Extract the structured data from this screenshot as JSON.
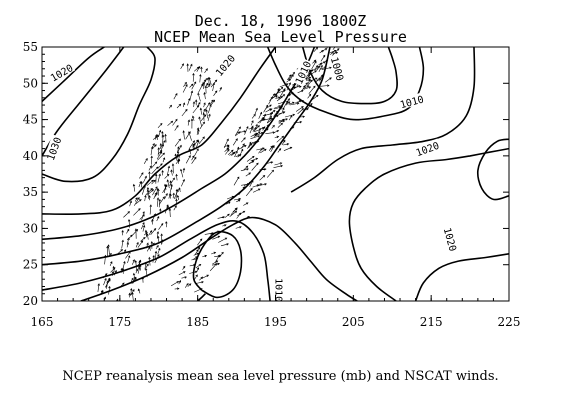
{
  "title": {
    "line1": "Dec. 18, 1996  1800Z",
    "line2": "NCEP Mean Sea Level Pressure"
  },
  "caption": "NCEP reanalysis mean sea level pressure (mb) and NSCAT winds.",
  "chart_data": {
    "type": "contour",
    "xlim": [
      165,
      225
    ],
    "ylim": [
      20,
      55
    ],
    "x_ticks": [
      165,
      175,
      185,
      195,
      205,
      215,
      225
    ],
    "y_ticks": [
      20,
      25,
      30,
      35,
      40,
      45,
      50,
      55
    ],
    "grid": false,
    "contour_labels": [
      {
        "text": "1020",
        "x": 167.5,
        "y": 51.5,
        "rot": -30
      },
      {
        "text": "1030",
        "x": 166.5,
        "y": 41.0,
        "rot": -70
      },
      {
        "text": "1020",
        "x": 188.5,
        "y": 52.5,
        "rot": -50
      },
      {
        "text": "1010",
        "x": 198.5,
        "y": 51.5,
        "rot": -65
      },
      {
        "text": "1000",
        "x": 203.0,
        "y": 52.0,
        "rot": 75
      },
      {
        "text": "1010",
        "x": 212.5,
        "y": 47.5,
        "rot": -15
      },
      {
        "text": "1020",
        "x": 214.5,
        "y": 41.0,
        "rot": -20
      },
      {
        "text": "1020",
        "x": 217.5,
        "y": 28.5,
        "rot": 75
      },
      {
        "text": "1010",
        "x": 195.5,
        "y": 21.5,
        "rot": 90
      }
    ],
    "contours": [
      [
        [
          165,
          47.5
        ],
        [
          168,
          50.5
        ],
        [
          171,
          53.5
        ],
        [
          173,
          55
        ]
      ],
      [
        [
          165,
          40
        ],
        [
          167,
          43.5
        ],
        [
          170,
          47.5
        ],
        [
          173,
          51.5
        ],
        [
          175.5,
          55
        ]
      ],
      [
        [
          165,
          37.5
        ],
        [
          168,
          36.5
        ],
        [
          171.5,
          37
        ],
        [
          174,
          39.5
        ],
        [
          176,
          43
        ],
        [
          177.5,
          47
        ],
        [
          179,
          50.5
        ],
        [
          179.5,
          53.5
        ],
        [
          178.5,
          55
        ]
      ],
      [
        [
          165,
          32
        ],
        [
          170,
          32
        ],
        [
          174,
          32.5
        ],
        [
          177,
          34.5
        ],
        [
          179.5,
          37.5
        ],
        [
          182.5,
          40
        ],
        [
          185.5,
          41.5
        ],
        [
          188,
          44.5
        ],
        [
          190.5,
          48
        ],
        [
          193,
          52
        ],
        [
          195,
          55
        ]
      ],
      [
        [
          165,
          28.5
        ],
        [
          170,
          29
        ],
        [
          175,
          30
        ],
        [
          179,
          31.5
        ],
        [
          182.5,
          33.5
        ],
        [
          185.5,
          35.5
        ],
        [
          188.5,
          37.5
        ],
        [
          191,
          40
        ],
        [
          193,
          42.5
        ],
        [
          195,
          45.5
        ],
        [
          197,
          49
        ],
        [
          199,
          52.5
        ],
        [
          200,
          55
        ]
      ],
      [
        [
          165,
          25
        ],
        [
          170,
          25.5
        ],
        [
          175,
          26.5
        ],
        [
          180,
          28
        ],
        [
          185,
          31
        ],
        [
          188,
          33
        ],
        [
          191,
          35.5
        ],
        [
          193.5,
          38.5
        ],
        [
          195.5,
          41.5
        ],
        [
          197.5,
          44.5
        ],
        [
          199.5,
          47.5
        ],
        [
          201,
          50.5
        ],
        [
          202,
          55
        ]
      ],
      [
        [
          165,
          21.5
        ],
        [
          170,
          22.5
        ],
        [
          175,
          24
        ],
        [
          180,
          26
        ],
        [
          184,
          28.5
        ],
        [
          187.5,
          30.5
        ],
        [
          190,
          31
        ],
        [
          192,
          29.5
        ],
        [
          193.5,
          26.5
        ],
        [
          194,
          23
        ],
        [
          194.3,
          20
        ]
      ],
      [
        [
          170,
          20
        ],
        [
          174,
          21.5
        ],
        [
          178.5,
          23.5
        ],
        [
          183,
          26
        ],
        [
          186.5,
          28.5
        ],
        [
          189.5,
          30.5
        ],
        [
          192,
          31.5
        ],
        [
          195,
          30.5
        ],
        [
          197.5,
          28
        ],
        [
          199.5,
          25.5
        ],
        [
          201.5,
          23
        ],
        [
          204,
          21
        ],
        [
          205.5,
          20
        ]
      ],
      [
        [
          182.5,
          20
        ],
        [
          184,
          19.2
        ],
        [
          185,
          20
        ],
        [
          186,
          21
        ]
      ],
      [
        [
          185.5,
          21.5
        ],
        [
          184.5,
          23
        ],
        [
          184.8,
          25.5
        ],
        [
          186,
          28
        ],
        [
          187.5,
          29.5
        ],
        [
          189.5,
          29
        ],
        [
          190.5,
          27
        ],
        [
          190.5,
          24
        ],
        [
          189.5,
          21.5
        ],
        [
          187.5,
          20.5
        ],
        [
          185.5,
          21.5
        ]
      ],
      [
        [
          198.5,
          55
        ],
        [
          199.5,
          51.5
        ],
        [
          201,
          49
        ],
        [
          203.5,
          47.5
        ],
        [
          206.5,
          47.2
        ],
        [
          209,
          47.5
        ],
        [
          210.5,
          49
        ],
        [
          210.5,
          51.5
        ],
        [
          210,
          53.5
        ],
        [
          209.5,
          55
        ]
      ],
      [
        [
          194,
          55
        ],
        [
          195,
          52.5
        ],
        [
          196.5,
          49.5
        ],
        [
          198.5,
          47.5
        ],
        [
          201.5,
          46
        ],
        [
          205,
          45
        ],
        [
          209,
          45.5
        ],
        [
          212,
          46.5
        ],
        [
          213.5,
          49
        ],
        [
          214,
          52
        ],
        [
          213.5,
          55
        ]
      ],
      [
        [
          197,
          35
        ],
        [
          200,
          37
        ],
        [
          203,
          39.5
        ],
        [
          206,
          41
        ],
        [
          210,
          41.5
        ],
        [
          214,
          42
        ],
        [
          217,
          43
        ],
        [
          219.5,
          45.5
        ],
        [
          220.5,
          49.5
        ],
        [
          220.5,
          55
        ]
      ],
      [
        [
          210.5,
          20
        ],
        [
          208,
          22
        ],
        [
          206,
          24.5
        ],
        [
          205,
          27.5
        ],
        [
          204.5,
          31
        ],
        [
          205,
          33.5
        ],
        [
          206.5,
          35.5
        ],
        [
          209,
          37.5
        ],
        [
          213,
          39
        ],
        [
          217,
          39.5
        ],
        [
          220,
          40
        ],
        [
          222.5,
          40.5
        ],
        [
          225,
          41
        ]
      ],
      [
        [
          213,
          20
        ],
        [
          214,
          22.5
        ],
        [
          216,
          24.5
        ],
        [
          218.5,
          25.5
        ],
        [
          222,
          26
        ],
        [
          225,
          26.5
        ]
      ],
      [
        [
          225,
          34.5
        ],
        [
          223,
          34
        ],
        [
          221.5,
          35.5
        ],
        [
          221,
          38
        ],
        [
          222,
          40.5
        ],
        [
          223.5,
          42
        ],
        [
          225,
          42.3
        ]
      ]
    ]
  }
}
